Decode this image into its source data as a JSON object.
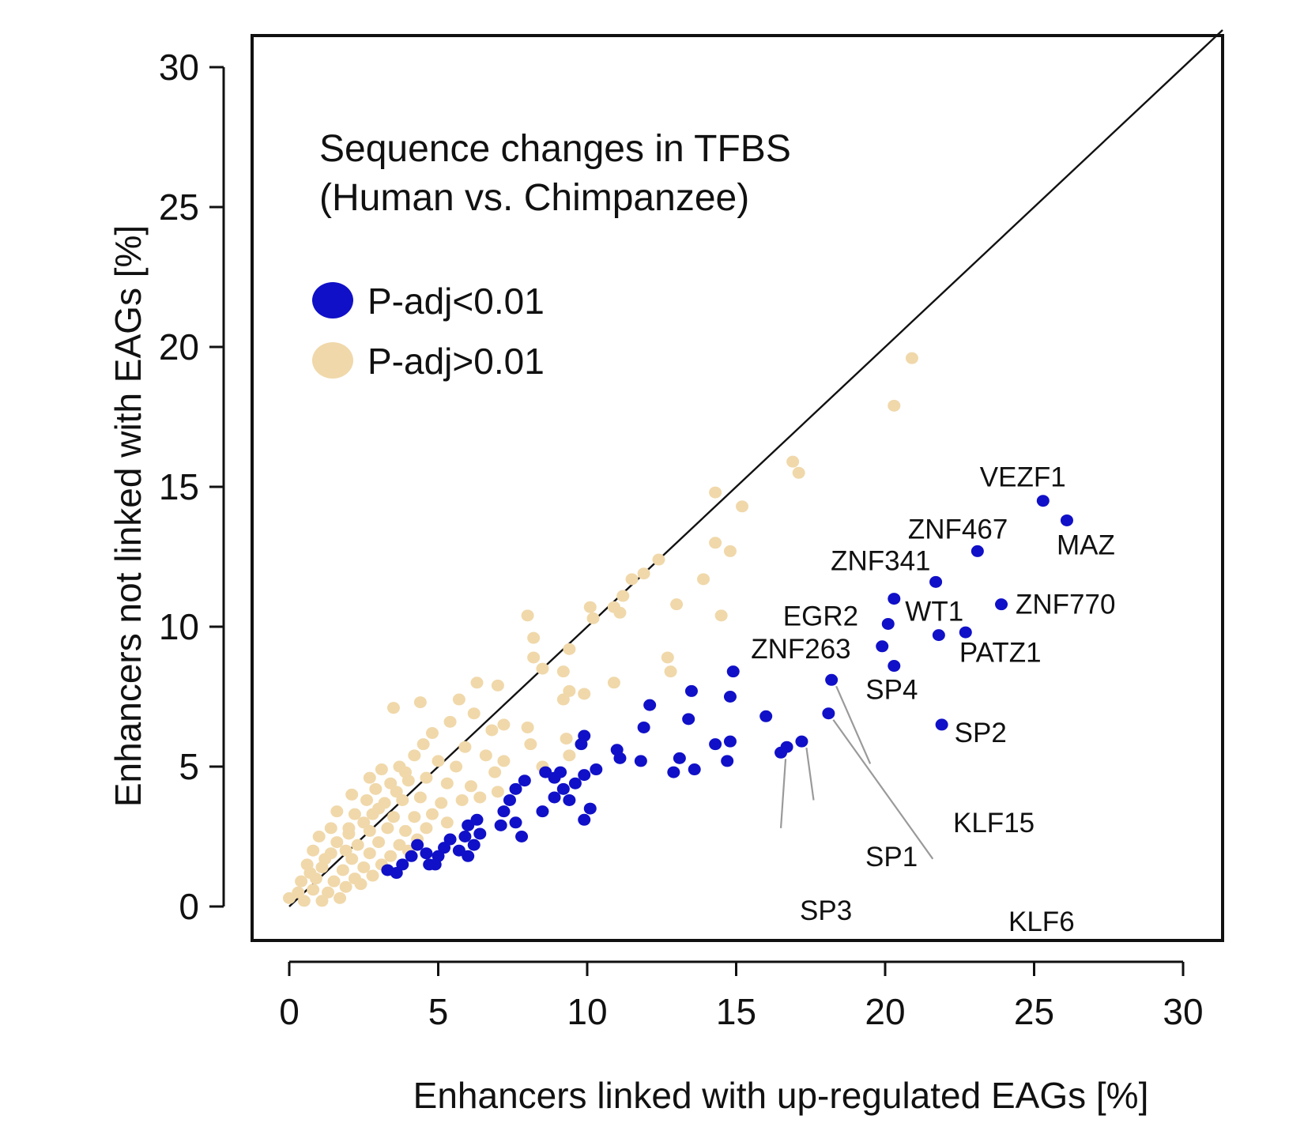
{
  "chart_data": {
    "type": "scatter",
    "title": "Sequence changes in TFBS",
    "subtitle": "(Human vs. Chimpanzee)",
    "xlabel": "Enhancers linked with up-regulated EAGs [%]",
    "ylabel": "Enhancers not linked with EAGs [%]",
    "xlim": [
      0,
      30
    ],
    "ylim": [
      0,
      30
    ],
    "xticks": [
      0,
      5,
      10,
      15,
      20,
      25,
      30
    ],
    "yticks": [
      0,
      5,
      10,
      15,
      20,
      25,
      30
    ],
    "grid": false,
    "legend_position": "top-left",
    "reference_line": "y = x",
    "colors": {
      "significant": "#1010c8",
      "not_significant": "#f0d8aa",
      "leader_line": "#9a9a9a",
      "axis": "#111111"
    },
    "series": [
      {
        "name": "P-adj<0.01",
        "color": "#1010c8",
        "points": [
          {
            "x": 25.3,
            "y": 14.5,
            "label": "VEZF1"
          },
          {
            "x": 26.1,
            "y": 13.8,
            "label": "MAZ"
          },
          {
            "x": 23.1,
            "y": 12.7,
            "label": "ZNF467"
          },
          {
            "x": 21.7,
            "y": 11.6,
            "label": "ZNF341"
          },
          {
            "x": 20.3,
            "y": 11.0,
            "label": "WT1"
          },
          {
            "x": 23.9,
            "y": 10.8,
            "label": "ZNF770"
          },
          {
            "x": 20.1,
            "y": 10.1,
            "label": "EGR2"
          },
          {
            "x": 21.8,
            "y": 9.7,
            "label": "PATZ1"
          },
          {
            "x": 22.7,
            "y": 9.8
          },
          {
            "x": 19.9,
            "y": 9.3,
            "label": "ZNF263"
          },
          {
            "x": 20.3,
            "y": 8.6,
            "label": "SP4"
          },
          {
            "x": 18.2,
            "y": 8.1,
            "label": "KLF15"
          },
          {
            "x": 18.1,
            "y": 6.9,
            "label": "KLF6"
          },
          {
            "x": 21.9,
            "y": 6.5,
            "label": "SP2"
          },
          {
            "x": 17.2,
            "y": 5.9,
            "label": "SP1"
          },
          {
            "x": 16.7,
            "y": 5.7
          },
          {
            "x": 16.5,
            "y": 5.5,
            "label": "SP3"
          },
          {
            "x": 16.0,
            "y": 6.8
          },
          {
            "x": 14.9,
            "y": 8.4
          },
          {
            "x": 14.8,
            "y": 7.5
          },
          {
            "x": 13.5,
            "y": 7.7
          },
          {
            "x": 13.4,
            "y": 6.7
          },
          {
            "x": 12.1,
            "y": 7.2
          },
          {
            "x": 11.9,
            "y": 6.4
          },
          {
            "x": 14.8,
            "y": 5.9
          },
          {
            "x": 14.3,
            "y": 5.8
          },
          {
            "x": 14.7,
            "y": 5.2
          },
          {
            "x": 13.1,
            "y": 5.3
          },
          {
            "x": 13.6,
            "y": 4.9
          },
          {
            "x": 12.9,
            "y": 4.8
          },
          {
            "x": 11.8,
            "y": 5.2
          },
          {
            "x": 11.1,
            "y": 5.3
          },
          {
            "x": 11.0,
            "y": 5.6
          },
          {
            "x": 10.3,
            "y": 4.9
          },
          {
            "x": 9.9,
            "y": 6.1
          },
          {
            "x": 9.8,
            "y": 5.8
          },
          {
            "x": 9.9,
            "y": 4.7
          },
          {
            "x": 9.6,
            "y": 4.4
          },
          {
            "x": 9.1,
            "y": 4.8
          },
          {
            "x": 8.9,
            "y": 4.6
          },
          {
            "x": 8.6,
            "y": 4.8
          },
          {
            "x": 9.2,
            "y": 4.2
          },
          {
            "x": 8.9,
            "y": 3.9
          },
          {
            "x": 9.4,
            "y": 3.8
          },
          {
            "x": 8.5,
            "y": 3.4
          },
          {
            "x": 10.1,
            "y": 3.5
          },
          {
            "x": 9.9,
            "y": 3.1
          },
          {
            "x": 7.9,
            "y": 4.5
          },
          {
            "x": 7.6,
            "y": 4.2
          },
          {
            "x": 7.4,
            "y": 3.8
          },
          {
            "x": 7.2,
            "y": 3.4
          },
          {
            "x": 7.6,
            "y": 3.0
          },
          {
            "x": 7.1,
            "y": 2.9
          },
          {
            "x": 7.8,
            "y": 2.5
          },
          {
            "x": 6.3,
            "y": 3.1
          },
          {
            "x": 6.0,
            "y": 2.9
          },
          {
            "x": 6.4,
            "y": 2.6
          },
          {
            "x": 5.9,
            "y": 2.5
          },
          {
            "x": 6.2,
            "y": 2.2
          },
          {
            "x": 5.7,
            "y": 2.0
          },
          {
            "x": 6.0,
            "y": 1.8
          },
          {
            "x": 5.4,
            "y": 2.4
          },
          {
            "x": 5.2,
            "y": 2.1
          },
          {
            "x": 5.0,
            "y": 1.8
          },
          {
            "x": 4.9,
            "y": 1.5
          },
          {
            "x": 4.7,
            "y": 1.5
          },
          {
            "x": 4.6,
            "y": 1.9
          },
          {
            "x": 4.3,
            "y": 2.2
          },
          {
            "x": 4.1,
            "y": 1.8
          },
          {
            "x": 3.8,
            "y": 1.5
          },
          {
            "x": 3.6,
            "y": 1.2
          },
          {
            "x": 3.3,
            "y": 1.3
          }
        ]
      },
      {
        "name": "P-adj>0.01",
        "color": "#f0d8aa",
        "points": [
          {
            "x": 20.9,
            "y": 19.6
          },
          {
            "x": 20.3,
            "y": 17.9
          },
          {
            "x": 16.9,
            "y": 15.9
          },
          {
            "x": 17.1,
            "y": 15.5
          },
          {
            "x": 14.3,
            "y": 14.8
          },
          {
            "x": 15.2,
            "y": 14.3
          },
          {
            "x": 14.3,
            "y": 13.0
          },
          {
            "x": 14.8,
            "y": 12.7
          },
          {
            "x": 12.4,
            "y": 12.4
          },
          {
            "x": 11.9,
            "y": 11.9
          },
          {
            "x": 11.5,
            "y": 11.7
          },
          {
            "x": 13.9,
            "y": 11.7
          },
          {
            "x": 11.2,
            "y": 11.1
          },
          {
            "x": 10.9,
            "y": 10.7
          },
          {
            "x": 13.0,
            "y": 10.8
          },
          {
            "x": 14.5,
            "y": 10.4
          },
          {
            "x": 10.1,
            "y": 10.7
          },
          {
            "x": 10.2,
            "y": 10.3
          },
          {
            "x": 11.1,
            "y": 10.5
          },
          {
            "x": 8.0,
            "y": 10.4
          },
          {
            "x": 8.2,
            "y": 9.6
          },
          {
            "x": 8.2,
            "y": 8.9
          },
          {
            "x": 8.5,
            "y": 8.5
          },
          {
            "x": 9.4,
            "y": 9.2
          },
          {
            "x": 9.2,
            "y": 8.4
          },
          {
            "x": 12.7,
            "y": 8.9
          },
          {
            "x": 12.8,
            "y": 8.4
          },
          {
            "x": 10.9,
            "y": 8.0
          },
          {
            "x": 9.4,
            "y": 7.7
          },
          {
            "x": 9.2,
            "y": 7.4
          },
          {
            "x": 9.9,
            "y": 7.6
          },
          {
            "x": 6.3,
            "y": 8.0
          },
          {
            "x": 7.0,
            "y": 7.9
          },
          {
            "x": 5.7,
            "y": 7.4
          },
          {
            "x": 4.4,
            "y": 7.3
          },
          {
            "x": 3.5,
            "y": 7.1
          },
          {
            "x": 6.2,
            "y": 6.9
          },
          {
            "x": 7.2,
            "y": 6.5
          },
          {
            "x": 8.0,
            "y": 6.4
          },
          {
            "x": 6.8,
            "y": 6.3
          },
          {
            "x": 5.4,
            "y": 6.6
          },
          {
            "x": 4.8,
            "y": 6.2
          },
          {
            "x": 4.5,
            "y": 5.8
          },
          {
            "x": 5.9,
            "y": 5.7
          },
          {
            "x": 6.6,
            "y": 5.4
          },
          {
            "x": 8.1,
            "y": 5.8
          },
          {
            "x": 9.3,
            "y": 6.0
          },
          {
            "x": 9.4,
            "y": 5.4
          },
          {
            "x": 8.5,
            "y": 5.0
          },
          {
            "x": 7.2,
            "y": 5.2
          },
          {
            "x": 6.9,
            "y": 4.8
          },
          {
            "x": 5.6,
            "y": 5.0
          },
          {
            "x": 5.0,
            "y": 5.2
          },
          {
            "x": 4.2,
            "y": 5.4
          },
          {
            "x": 3.7,
            "y": 5.0
          },
          {
            "x": 3.1,
            "y": 4.9
          },
          {
            "x": 2.7,
            "y": 4.6
          },
          {
            "x": 2.9,
            "y": 4.2
          },
          {
            "x": 3.4,
            "y": 4.4
          },
          {
            "x": 4.0,
            "y": 4.5
          },
          {
            "x": 4.6,
            "y": 4.6
          },
          {
            "x": 5.3,
            "y": 4.4
          },
          {
            "x": 6.1,
            "y": 4.3
          },
          {
            "x": 7.0,
            "y": 4.1
          },
          {
            "x": 6.4,
            "y": 3.9
          },
          {
            "x": 5.8,
            "y": 3.8
          },
          {
            "x": 5.1,
            "y": 3.7
          },
          {
            "x": 4.4,
            "y": 3.9
          },
          {
            "x": 3.8,
            "y": 3.8
          },
          {
            "x": 3.2,
            "y": 3.7
          },
          {
            "x": 2.6,
            "y": 3.8
          },
          {
            "x": 2.1,
            "y": 4.0
          },
          {
            "x": 1.6,
            "y": 3.4
          },
          {
            "x": 2.2,
            "y": 3.3
          },
          {
            "x": 2.8,
            "y": 3.3
          },
          {
            "x": 3.5,
            "y": 3.2
          },
          {
            "x": 4.2,
            "y": 3.2
          },
          {
            "x": 4.8,
            "y": 3.3
          },
          {
            "x": 5.3,
            "y": 3.0
          },
          {
            "x": 4.6,
            "y": 2.8
          },
          {
            "x": 3.9,
            "y": 2.7
          },
          {
            "x": 3.3,
            "y": 2.8
          },
          {
            "x": 2.7,
            "y": 2.7
          },
          {
            "x": 2.0,
            "y": 2.8
          },
          {
            "x": 1.4,
            "y": 2.8
          },
          {
            "x": 1.0,
            "y": 2.5
          },
          {
            "x": 1.6,
            "y": 2.3
          },
          {
            "x": 2.3,
            "y": 2.2
          },
          {
            "x": 3.0,
            "y": 2.3
          },
          {
            "x": 3.7,
            "y": 2.2
          },
          {
            "x": 4.3,
            "y": 2.4
          },
          {
            "x": 4.0,
            "y": 2.0
          },
          {
            "x": 3.4,
            "y": 1.8
          },
          {
            "x": 2.7,
            "y": 1.9
          },
          {
            "x": 2.1,
            "y": 1.7
          },
          {
            "x": 1.4,
            "y": 1.9
          },
          {
            "x": 0.8,
            "y": 2.0
          },
          {
            "x": 0.6,
            "y": 1.5
          },
          {
            "x": 1.1,
            "y": 1.4
          },
          {
            "x": 1.8,
            "y": 1.3
          },
          {
            "x": 2.5,
            "y": 1.4
          },
          {
            "x": 3.1,
            "y": 1.5
          },
          {
            "x": 2.8,
            "y": 1.1
          },
          {
            "x": 2.2,
            "y": 1.0
          },
          {
            "x": 1.5,
            "y": 0.9
          },
          {
            "x": 0.9,
            "y": 1.0
          },
          {
            "x": 0.4,
            "y": 0.9
          },
          {
            "x": 0.3,
            "y": 0.5
          },
          {
            "x": 0.8,
            "y": 0.6
          },
          {
            "x": 1.3,
            "y": 0.5
          },
          {
            "x": 1.9,
            "y": 0.7
          },
          {
            "x": 2.4,
            "y": 0.8
          },
          {
            "x": 0.0,
            "y": 0.3
          },
          {
            "x": 0.5,
            "y": 0.2
          },
          {
            "x": 1.1,
            "y": 0.2
          },
          {
            "x": 1.7,
            "y": 0.3
          },
          {
            "x": 2.0,
            "y": 2.6
          },
          {
            "x": 2.5,
            "y": 3.0
          },
          {
            "x": 3.0,
            "y": 3.5
          },
          {
            "x": 3.6,
            "y": 4.1
          },
          {
            "x": 1.2,
            "y": 1.7
          },
          {
            "x": 1.9,
            "y": 2.0
          },
          {
            "x": 0.7,
            "y": 1.2
          },
          {
            "x": 3.9,
            "y": 4.8
          }
        ]
      }
    ]
  }
}
